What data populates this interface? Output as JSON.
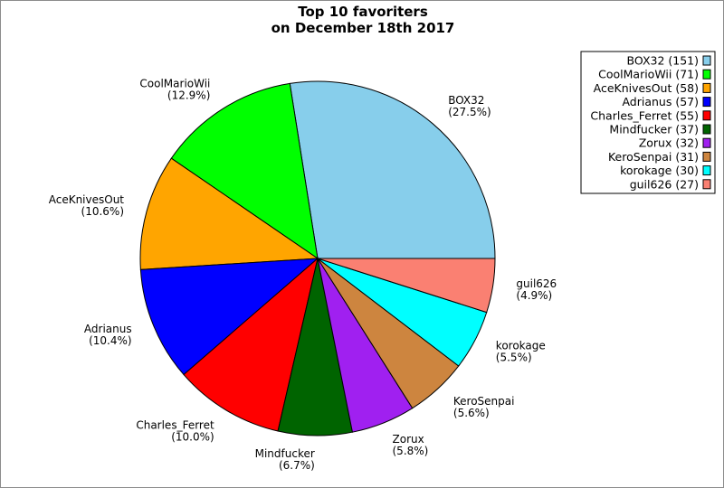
{
  "chart_data": {
    "type": "pie",
    "title_lines": [
      "Top 10 favoriters",
      "on December 18th 2017"
    ],
    "slices": [
      {
        "label": "BOX32",
        "value": 151,
        "percent": "27.5%",
        "color": "#87ceeb"
      },
      {
        "label": "CoolMarioWii",
        "value": 71,
        "percent": "12.9%",
        "color": "#00ff00"
      },
      {
        "label": "AceKnivesOut",
        "value": 58,
        "percent": "10.6%",
        "color": "#ffa500"
      },
      {
        "label": "Adrianus",
        "value": 57,
        "percent": "10.4%",
        "color": "#0000ff"
      },
      {
        "label": "Charles_Ferret",
        "value": 55,
        "percent": "10.0%",
        "color": "#ff0000"
      },
      {
        "label": "Mindfucker",
        "value": 37,
        "percent": "6.7%",
        "color": "#006400"
      },
      {
        "label": "Zorux",
        "value": 32,
        "percent": "5.8%",
        "color": "#a020f0"
      },
      {
        "label": "KeroSenpai",
        "value": 31,
        "percent": "5.6%",
        "color": "#cd853f"
      },
      {
        "label": "korokage",
        "value": 30,
        "percent": "5.5%",
        "color": "#00ffff"
      },
      {
        "label": "guil626",
        "value": 27,
        "percent": "4.9%",
        "color": "#fa8072"
      }
    ],
    "legend": {
      "placement": "top-right",
      "entries": [
        "BOX32 (151)",
        "CoolMarioWii (71)",
        "AceKnivesOut (58)",
        "Adrianus (57)",
        "Charles_Ferret (55)",
        "Mindfucker (37)",
        "Zorux (32)",
        "KeroSenpai (31)",
        "korokage (30)",
        "guil626 (27)"
      ]
    },
    "start_angle": "right, counter-clockwise"
  }
}
